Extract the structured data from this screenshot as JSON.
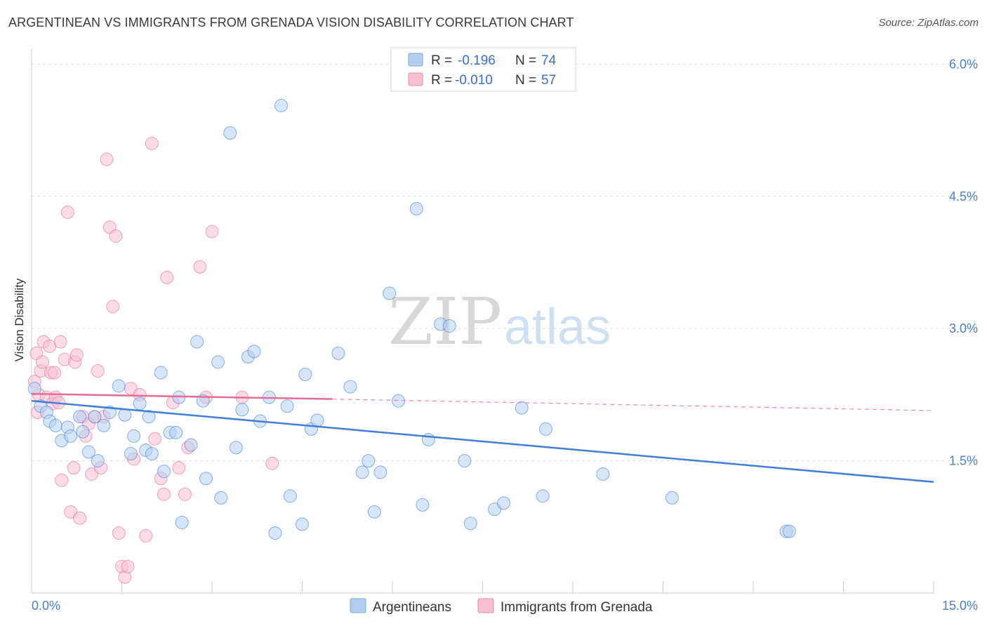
{
  "header": {
    "title": "ARGENTINEAN VS IMMIGRANTS FROM GRENADA VISION DISABILITY CORRELATION CHART",
    "source": "Source: ZipAtlas.com"
  },
  "colors": {
    "blue": "#3f7fd8",
    "blue_fill": "#b4cff2",
    "pink": "#e86a96",
    "pink_fill": "#f7bfd2",
    "tick": "#4a7fc8"
  },
  "legend": {
    "rows": [
      {
        "r_label": "R =",
        "r_value": "-0.196",
        "n_label": "N =",
        "n_value": "74"
      },
      {
        "r_label": "R =",
        "r_value": "-0.010",
        "n_label": "N =",
        "n_value": "57"
      }
    ]
  },
  "watermark": {
    "zip": "ZIP",
    "atlas": "atlas"
  },
  "chart_data": {
    "type": "scatter",
    "title": "ARGENTINEAN VS IMMIGRANTS FROM GRENADA VISION DISABILITY CORRELATION CHART",
    "ylabel": "Vision Disability",
    "xlabel": "",
    "xlim": [
      0,
      15
    ],
    "ylim": [
      0,
      6.25
    ],
    "x_tick_labels": [
      "0.0%",
      "15.0%"
    ],
    "y_ticks": [
      1.5,
      3.0,
      4.5,
      6.0
    ],
    "y_tick_labels": [
      "1.5%",
      "3.0%",
      "4.5%",
      "6.0%"
    ],
    "grid": true,
    "legend_placement": "top-center",
    "series": [
      {
        "name": "Argentineans",
        "color": "#3f7fd8",
        "trend": {
          "x": [
            0,
            15
          ],
          "y": [
            2.18,
            1.26
          ]
        },
        "points": [
          [
            0.05,
            2.32
          ],
          [
            0.15,
            2.12
          ],
          [
            0.25,
            2.05
          ],
          [
            0.3,
            1.95
          ],
          [
            0.4,
            1.9
          ],
          [
            0.5,
            1.73
          ],
          [
            0.6,
            1.88
          ],
          [
            0.65,
            1.78
          ],
          [
            0.8,
            2.0
          ],
          [
            0.85,
            1.83
          ],
          [
            0.95,
            1.6
          ],
          [
            1.05,
            2.0
          ],
          [
            1.1,
            1.5
          ],
          [
            1.2,
            1.9
          ],
          [
            1.3,
            2.05
          ],
          [
            1.45,
            2.35
          ],
          [
            1.55,
            2.02
          ],
          [
            1.65,
            1.58
          ],
          [
            1.7,
            1.78
          ],
          [
            1.8,
            2.15
          ],
          [
            1.9,
            1.62
          ],
          [
            1.95,
            2.0
          ],
          [
            2.0,
            1.58
          ],
          [
            2.15,
            2.5
          ],
          [
            2.2,
            1.38
          ],
          [
            2.3,
            1.82
          ],
          [
            2.4,
            1.82
          ],
          [
            2.45,
            2.22
          ],
          [
            2.5,
            0.8
          ],
          [
            2.65,
            1.68
          ],
          [
            2.75,
            2.85
          ],
          [
            2.85,
            2.18
          ],
          [
            2.9,
            1.3
          ],
          [
            3.1,
            2.62
          ],
          [
            3.15,
            1.08
          ],
          [
            3.3,
            5.22
          ],
          [
            3.4,
            1.65
          ],
          [
            3.5,
            2.08
          ],
          [
            3.6,
            2.68
          ],
          [
            3.7,
            2.74
          ],
          [
            3.8,
            1.95
          ],
          [
            3.95,
            2.22
          ],
          [
            4.05,
            0.68
          ],
          [
            4.15,
            5.53
          ],
          [
            4.25,
            2.12
          ],
          [
            4.3,
            1.1
          ],
          [
            4.5,
            0.78
          ],
          [
            4.55,
            2.48
          ],
          [
            4.65,
            1.86
          ],
          [
            4.75,
            1.96
          ],
          [
            5.1,
            2.72
          ],
          [
            5.3,
            2.34
          ],
          [
            5.5,
            1.37
          ],
          [
            5.6,
            1.5
          ],
          [
            5.7,
            0.92
          ],
          [
            5.8,
            1.37
          ],
          [
            5.95,
            3.4
          ],
          [
            6.1,
            2.18
          ],
          [
            6.4,
            4.36
          ],
          [
            6.5,
            1.0
          ],
          [
            6.6,
            1.74
          ],
          [
            6.8,
            3.05
          ],
          [
            6.95,
            3.03
          ],
          [
            7.2,
            1.5
          ],
          [
            7.3,
            0.79
          ],
          [
            7.7,
            0.95
          ],
          [
            7.85,
            1.02
          ],
          [
            8.15,
            2.1
          ],
          [
            8.5,
            1.1
          ],
          [
            8.55,
            1.86
          ],
          [
            9.5,
            1.35
          ],
          [
            10.65,
            1.08
          ],
          [
            12.55,
            0.7
          ],
          [
            12.6,
            0.7
          ]
        ]
      },
      {
        "name": "Immigrants from Grenada",
        "color": "#e86a96",
        "trend": {
          "x": [
            0,
            5
          ],
          "y": [
            2.26,
            2.2
          ]
        },
        "trend_extension": {
          "x": [
            5,
            15
          ],
          "y": [
            2.2,
            2.07
          ]
        },
        "points": [
          [
            0.05,
            2.4
          ],
          [
            0.08,
            2.72
          ],
          [
            0.1,
            2.05
          ],
          [
            0.12,
            2.25
          ],
          [
            0.15,
            2.52
          ],
          [
            0.18,
            2.62
          ],
          [
            0.2,
            2.85
          ],
          [
            0.25,
            2.22
          ],
          [
            0.3,
            2.8
          ],
          [
            0.32,
            2.5
          ],
          [
            0.35,
            2.15
          ],
          [
            0.38,
            2.5
          ],
          [
            0.4,
            2.22
          ],
          [
            0.45,
            2.16
          ],
          [
            0.48,
            2.85
          ],
          [
            0.5,
            1.28
          ],
          [
            0.55,
            2.65
          ],
          [
            0.6,
            4.32
          ],
          [
            0.65,
            0.92
          ],
          [
            0.7,
            1.42
          ],
          [
            0.72,
            2.62
          ],
          [
            0.75,
            2.7
          ],
          [
            0.8,
            0.85
          ],
          [
            0.85,
            2.0
          ],
          [
            0.9,
            1.78
          ],
          [
            0.95,
            1.92
          ],
          [
            1.0,
            1.35
          ],
          [
            1.05,
            2.0
          ],
          [
            1.1,
            2.52
          ],
          [
            1.15,
            1.42
          ],
          [
            1.2,
            2.0
          ],
          [
            1.25,
            4.92
          ],
          [
            1.3,
            4.15
          ],
          [
            1.35,
            3.25
          ],
          [
            1.4,
            4.05
          ],
          [
            1.45,
            0.68
          ],
          [
            1.5,
            0.3
          ],
          [
            1.55,
            0.18
          ],
          [
            1.6,
            0.3
          ],
          [
            1.65,
            2.32
          ],
          [
            1.7,
            1.52
          ],
          [
            1.8,
            2.25
          ],
          [
            1.9,
            0.65
          ],
          [
            2.0,
            5.1
          ],
          [
            2.05,
            1.75
          ],
          [
            2.15,
            1.3
          ],
          [
            2.2,
            1.12
          ],
          [
            2.25,
            3.58
          ],
          [
            2.35,
            2.16
          ],
          [
            2.45,
            1.42
          ],
          [
            2.55,
            1.12
          ],
          [
            2.6,
            1.65
          ],
          [
            2.8,
            3.7
          ],
          [
            2.9,
            2.22
          ],
          [
            3.0,
            4.1
          ],
          [
            3.5,
            2.22
          ],
          [
            4.0,
            1.47
          ]
        ]
      }
    ]
  }
}
